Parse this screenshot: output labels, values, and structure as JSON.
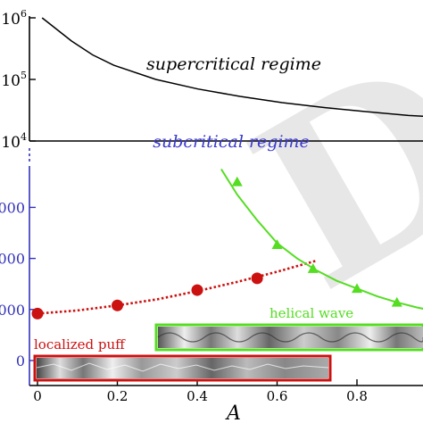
{
  "chart_data": [
    {
      "panel": "upper",
      "type": "line",
      "yscale": "log",
      "ylim": [
        10000,
        1000000
      ],
      "xlim": [
        0,
        1
      ],
      "yticks": [
        {
          "value": 1000000,
          "base": "10",
          "exp": "6"
        },
        {
          "value": 100000,
          "base": "10",
          "exp": "5"
        },
        {
          "value": 10000,
          "base": "10",
          "exp": "4"
        }
      ],
      "annotation": "supercritical regime",
      "series": [
        {
          "color": "#000000",
          "x": [
            0.03,
            0.05,
            0.08,
            0.1,
            0.15,
            0.2,
            0.3,
            0.4,
            0.5,
            0.6,
            0.7,
            0.8,
            0.9,
            1.0
          ],
          "y": [
            1000000,
            780000,
            540000,
            420000,
            250000,
            170000,
            100000,
            70000,
            53000,
            42000,
            35000,
            30000,
            26000,
            24000
          ]
        }
      ]
    },
    {
      "panel": "lower",
      "type": "scatter",
      "xlabel": "A",
      "xlim": [
        0,
        1.0
      ],
      "ylim": [
        -500,
        3300
      ],
      "xticks": [
        "0",
        "0.2",
        "0.4",
        "0.6",
        "0.8"
      ],
      "yticks": [
        {
          "value": 0,
          "label": "0"
        },
        {
          "value": 1000,
          "label": "000"
        },
        {
          "value": 2000,
          "label": "000"
        },
        {
          "value": 3000,
          "label": "000"
        }
      ],
      "annotation": "subcritical regime",
      "series": [
        {
          "name": "localized puff",
          "color": "#cc1111",
          "marker": "circle",
          "points_x": [
            0,
            0.2,
            0.4,
            0.55
          ],
          "points_y": [
            920,
            1080,
            1380,
            1610
          ],
          "fit_x": [
            0,
            0.1,
            0.2,
            0.3,
            0.4,
            0.5,
            0.6,
            0.7
          ],
          "fit_y": [
            920,
            980,
            1080,
            1200,
            1360,
            1540,
            1740,
            1960
          ]
        },
        {
          "name": "helical wave",
          "color": "#55dd22",
          "marker": "triangle",
          "points_x": [
            0.5,
            0.6,
            0.69,
            0.8,
            0.9
          ],
          "points_y": [
            3500,
            2270,
            1800,
            1410,
            1140
          ],
          "fit_x": [
            0.46,
            0.5,
            0.55,
            0.6,
            0.65,
            0.7,
            0.75,
            0.8,
            0.85,
            0.9,
            0.95,
            1.0
          ],
          "fit_y": [
            3750,
            3250,
            2750,
            2300,
            2000,
            1760,
            1560,
            1410,
            1260,
            1140,
            1040,
            960
          ]
        }
      ]
    }
  ],
  "colors": {
    "axis": "#000000",
    "lower_axis": "#3333bb",
    "subcritical_text": "#3a3acc",
    "puff": "#cc1111",
    "helical": "#55dd22"
  }
}
